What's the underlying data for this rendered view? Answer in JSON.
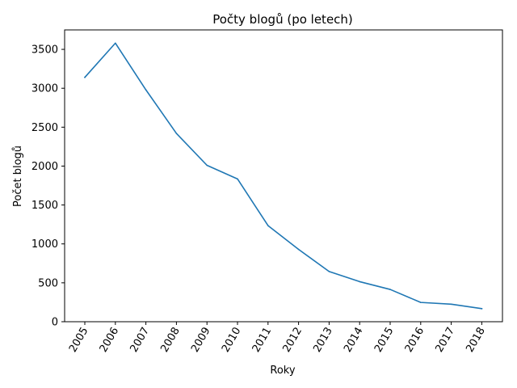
{
  "chart_data": {
    "type": "line",
    "title": "Počty blogů (po letech)",
    "xlabel": "Roky",
    "ylabel": "Počet blogů",
    "x": [
      "2005",
      "2006",
      "2007",
      "2008",
      "2009",
      "2010",
      "2011",
      "2012",
      "2013",
      "2014",
      "2015",
      "2016",
      "2017",
      "2018"
    ],
    "series": [
      {
        "values": [
          3140,
          3580,
          2980,
          2420,
          2010,
          1835,
          1235,
          930,
          645,
          515,
          415,
          248,
          225,
          168
        ]
      }
    ],
    "ylim": [
      0,
      3750
    ],
    "yticks": [
      0,
      500,
      1000,
      1500,
      2000,
      2500,
      3000,
      3500
    ],
    "ytick_labels": [
      "0",
      "500",
      "1000",
      "1500",
      "2000",
      "2500",
      "3000",
      "3500"
    ],
    "xtick_rotation": 60,
    "grid": false,
    "line_color": "#1f77b4"
  }
}
